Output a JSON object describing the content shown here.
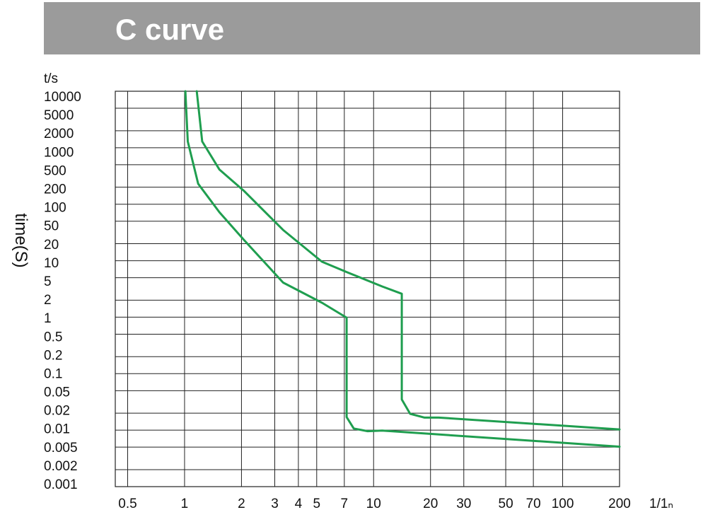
{
  "chart_data": {
    "type": "line",
    "title": "C curve",
    "y_unit_label": "t/s",
    "ylabel": "time(S)",
    "xlabel": "1/1ₙ",
    "xscale": "log",
    "yscale": "log",
    "grid": true,
    "xlim": [
      0.43,
      200
    ],
    "ylim": [
      0.001,
      10000
    ],
    "xticks": [
      0.5,
      1,
      2,
      3,
      4,
      5,
      7,
      10,
      20,
      30,
      50,
      70,
      100,
      200
    ],
    "yticks": [
      10000,
      5000,
      2000,
      1000,
      500,
      200,
      100,
      50,
      20,
      10,
      5,
      2,
      1,
      0.5,
      0.2,
      0.1,
      0.05,
      0.02,
      0.01,
      0.005,
      0.002,
      0.001
    ],
    "series": [
      {
        "color": "#1f9e4f",
        "x": [
          1.01,
          1.04,
          1.18,
          1.53,
          2.07,
          3.32,
          5.33,
          7.2,
          7.2,
          7.85,
          9.3,
          11.1,
          200
        ],
        "values": [
          10000,
          1290,
          230,
          72,
          23,
          4.1,
          1.8,
          0.98,
          0.017,
          0.0107,
          0.0096,
          0.0098,
          0.0051
        ]
      },
      {
        "color": "#1f9e4f",
        "x": [
          1.16,
          1.24,
          1.53,
          2.07,
          3.32,
          5.33,
          7.2,
          11.1,
          14.1,
          14.1,
          15.6,
          18.6,
          22.1,
          200
        ],
        "values": [
          10000,
          1290,
          410,
          170,
          35,
          9.6,
          6.3,
          3.5,
          2.6,
          0.035,
          0.0195,
          0.0167,
          0.0167,
          0.0103
        ]
      }
    ]
  }
}
